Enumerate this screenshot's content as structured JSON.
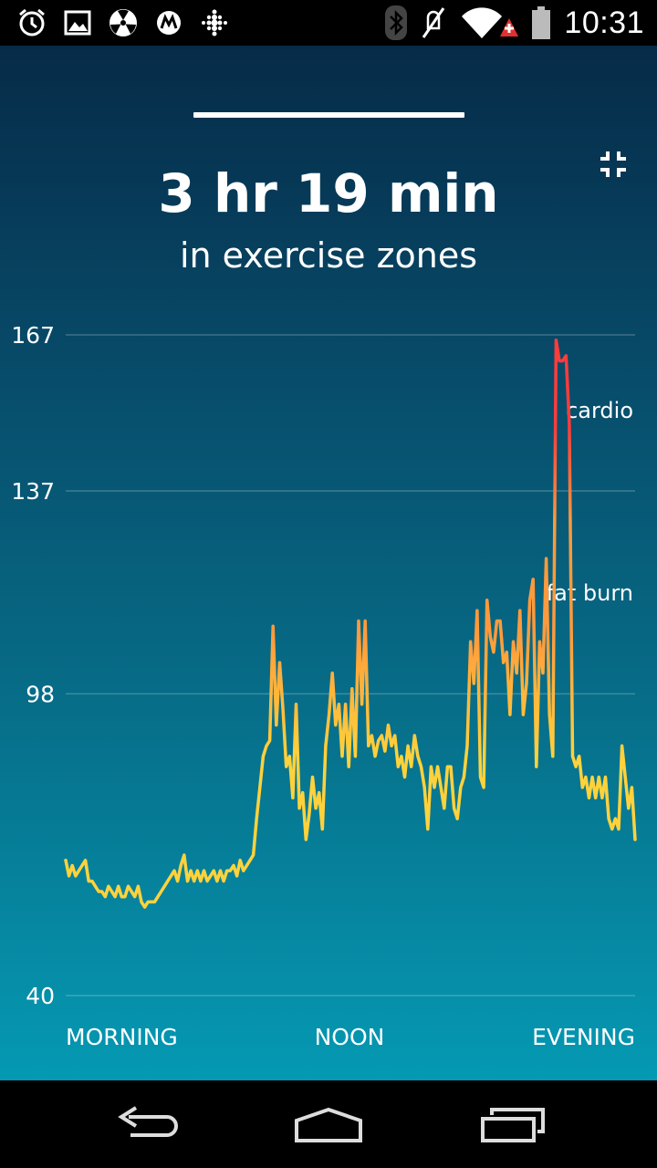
{
  "status_bar": {
    "time": "10:31",
    "left_icons": [
      "alarm-icon",
      "image-icon",
      "radiation-icon",
      "motorola-icon",
      "fitbit-icon"
    ],
    "right_icons": [
      "bluetooth-icon",
      "mute-icon",
      "wifi-icon",
      "battery-icon"
    ]
  },
  "summary": {
    "duration": "3 hr 19 min",
    "caption": "in exercise zones"
  },
  "colors": {
    "resting": "#ffd23c",
    "fat_burn": "#ff9a3c",
    "cardio": "#ff3c3c"
  },
  "chart_data": {
    "type": "line",
    "y_ticks": [
      "167",
      "137",
      "98",
      "40"
    ],
    "y_tick_values": [
      167,
      137,
      98,
      40
    ],
    "ylim": [
      40,
      167
    ],
    "x_labels": [
      "MORNING",
      "NOON",
      "EVENING"
    ],
    "zone_labels": {
      "cardio": "cardio",
      "fat_burn": "fat burn"
    },
    "grid": true,
    "series": [
      {
        "values": [
          66,
          63,
          65,
          63,
          64,
          65,
          66,
          62,
          62,
          61,
          60,
          60,
          59,
          61,
          60,
          59,
          61,
          59,
          59,
          61,
          60,
          59,
          61,
          58,
          57,
          58,
          58,
          58,
          59,
          60,
          61,
          62,
          63,
          64,
          62,
          65,
          67,
          62,
          64,
          62,
          64,
          62,
          64,
          62,
          63,
          64,
          62,
          64,
          62,
          64,
          64,
          65,
          63,
          66,
          64,
          65,
          66,
          67,
          74,
          80,
          86,
          88,
          89,
          111,
          92,
          104,
          95,
          84,
          86,
          78,
          96,
          76,
          79,
          70,
          75,
          82,
          76,
          79,
          72,
          88,
          94,
          102,
          92,
          96,
          86,
          96,
          84,
          99,
          86,
          112,
          96,
          112,
          88,
          90,
          86,
          89,
          90,
          87,
          92,
          88,
          90,
          84,
          86,
          82,
          88,
          84,
          90,
          86,
          84,
          80,
          72,
          84,
          80,
          84,
          80,
          76,
          84,
          84,
          76,
          74,
          80,
          82,
          88,
          108,
          100,
          114,
          82,
          80,
          116,
          109,
          106,
          112,
          112,
          104,
          106,
          94,
          108,
          102,
          114,
          94,
          100,
          116,
          120,
          84,
          108,
          102,
          124,
          94,
          86,
          166,
          162,
          162,
          163,
          150,
          86,
          84,
          86,
          80,
          82,
          78,
          82,
          78,
          82,
          78,
          82,
          74,
          72,
          74,
          72,
          88,
          82,
          76,
          80,
          70
        ]
      }
    ]
  },
  "nav_bar": {
    "buttons": [
      "back-icon",
      "home-icon",
      "recent-apps-icon"
    ]
  }
}
